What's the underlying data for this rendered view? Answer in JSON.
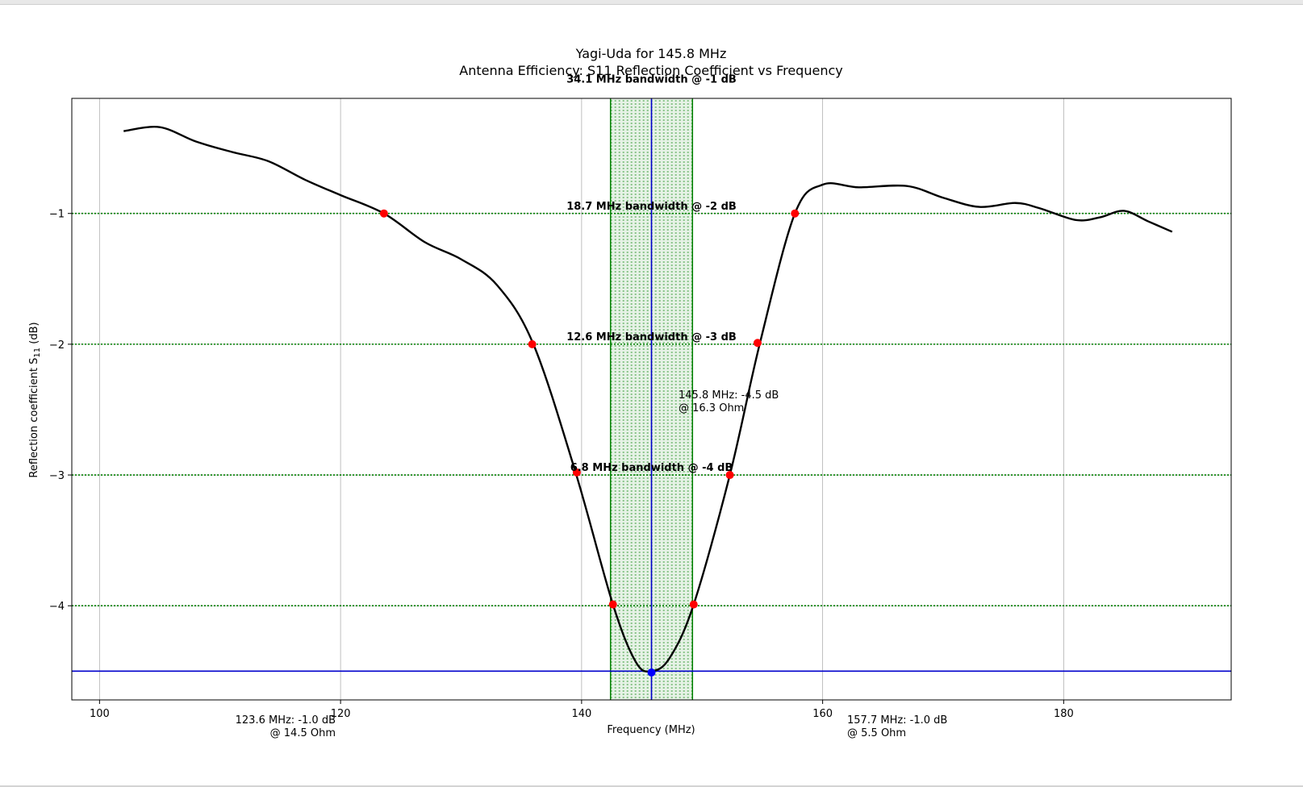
{
  "chart_data": {
    "type": "line",
    "title": "Yagi-Uda for 145.8 MHz",
    "subtitle": "Antenna Efficiency: S11 Reflection Coefficient vs Frequency",
    "xlabel": "Frequency (MHz)",
    "ylabel": "Reflection coefficient S11 (dB)",
    "xlim": [
      97.7,
      193.9
    ],
    "ylim": [
      -4.72,
      -0.12
    ],
    "x_ticks": [
      100,
      120,
      140,
      160,
      180
    ],
    "y_ticks": [
      -1,
      -2,
      -3,
      -4
    ],
    "grid": true,
    "center_frequency": 145.8,
    "min_s11": -4.5,
    "series": [
      {
        "x": [
          102,
          105,
          108,
          111,
          114,
          117,
          120,
          123.6,
          127,
          130,
          133,
          136,
          139.5,
          142.6,
          144.5,
          145.8,
          147.3,
          149.3,
          152.3,
          154.8,
          157.7,
          160,
          163,
          167,
          170,
          173,
          176,
          178,
          181,
          183,
          185,
          187,
          189
        ],
        "y": [
          -0.37,
          -0.34,
          -0.45,
          -0.53,
          -0.6,
          -0.74,
          -0.86,
          -1.0,
          -1.22,
          -1.35,
          -1.55,
          -2.0,
          -2.98,
          -3.99,
          -4.43,
          -4.5,
          -4.4,
          -3.99,
          -3.0,
          -1.99,
          -1.0,
          -0.78,
          -0.8,
          -0.79,
          -0.88,
          -0.95,
          -0.92,
          -0.96,
          -1.05,
          -1.03,
          -0.98,
          -1.06,
          -1.14
        ]
      }
    ],
    "threshold_points": [
      {
        "x": 123.6,
        "y": -1.0
      },
      {
        "x": 157.7,
        "y": -1.0
      },
      {
        "x": 135.9,
        "y": -2.0
      },
      {
        "x": 154.6,
        "y": -1.99
      },
      {
        "x": 139.6,
        "y": -2.98
      },
      {
        "x": 152.3,
        "y": -3.0
      },
      {
        "x": 142.6,
        "y": -3.99
      },
      {
        "x": 149.3,
        "y": -3.99
      }
    ],
    "min_point": {
      "x": 145.8,
      "y": -4.51
    },
    "bandwidth_lines": [
      -1,
      -2,
      -3,
      -4
    ],
    "bandwidth_labels": [
      {
        "text": "34.1 MHz bandwidth @ -1 dB",
        "x": 145.8,
        "y": -0.0
      },
      {
        "text": "18.7 MHz bandwidth @ -2 dB",
        "x": 145.8,
        "y": -0.97
      },
      {
        "text": "12.6 MHz bandwidth @ -3 dB",
        "x": 145.8,
        "y": -1.97
      },
      {
        "text": "6.8 MHz bandwidth @ -4 dB",
        "x": 145.8,
        "y": -2.97
      }
    ],
    "band_span": [
      142.4,
      149.2
    ],
    "annotations": {
      "center": [
        "145.8 MHz: -4.5 dB",
        "@ 16.3 Ohm"
      ],
      "left": [
        "123.6 MHz: -1.0 dB",
        "@ 14.5 Ohm"
      ],
      "right": [
        "157.7 MHz: -1.0 dB",
        "@ 5.5 Ohm"
      ]
    },
    "colors": {
      "curve": "#000000",
      "threshold_marker": "#ff0000",
      "min_marker": "#0000ff",
      "min_lines": "#0000cc",
      "band": "#008000",
      "grid": "#b0b0b0"
    }
  }
}
